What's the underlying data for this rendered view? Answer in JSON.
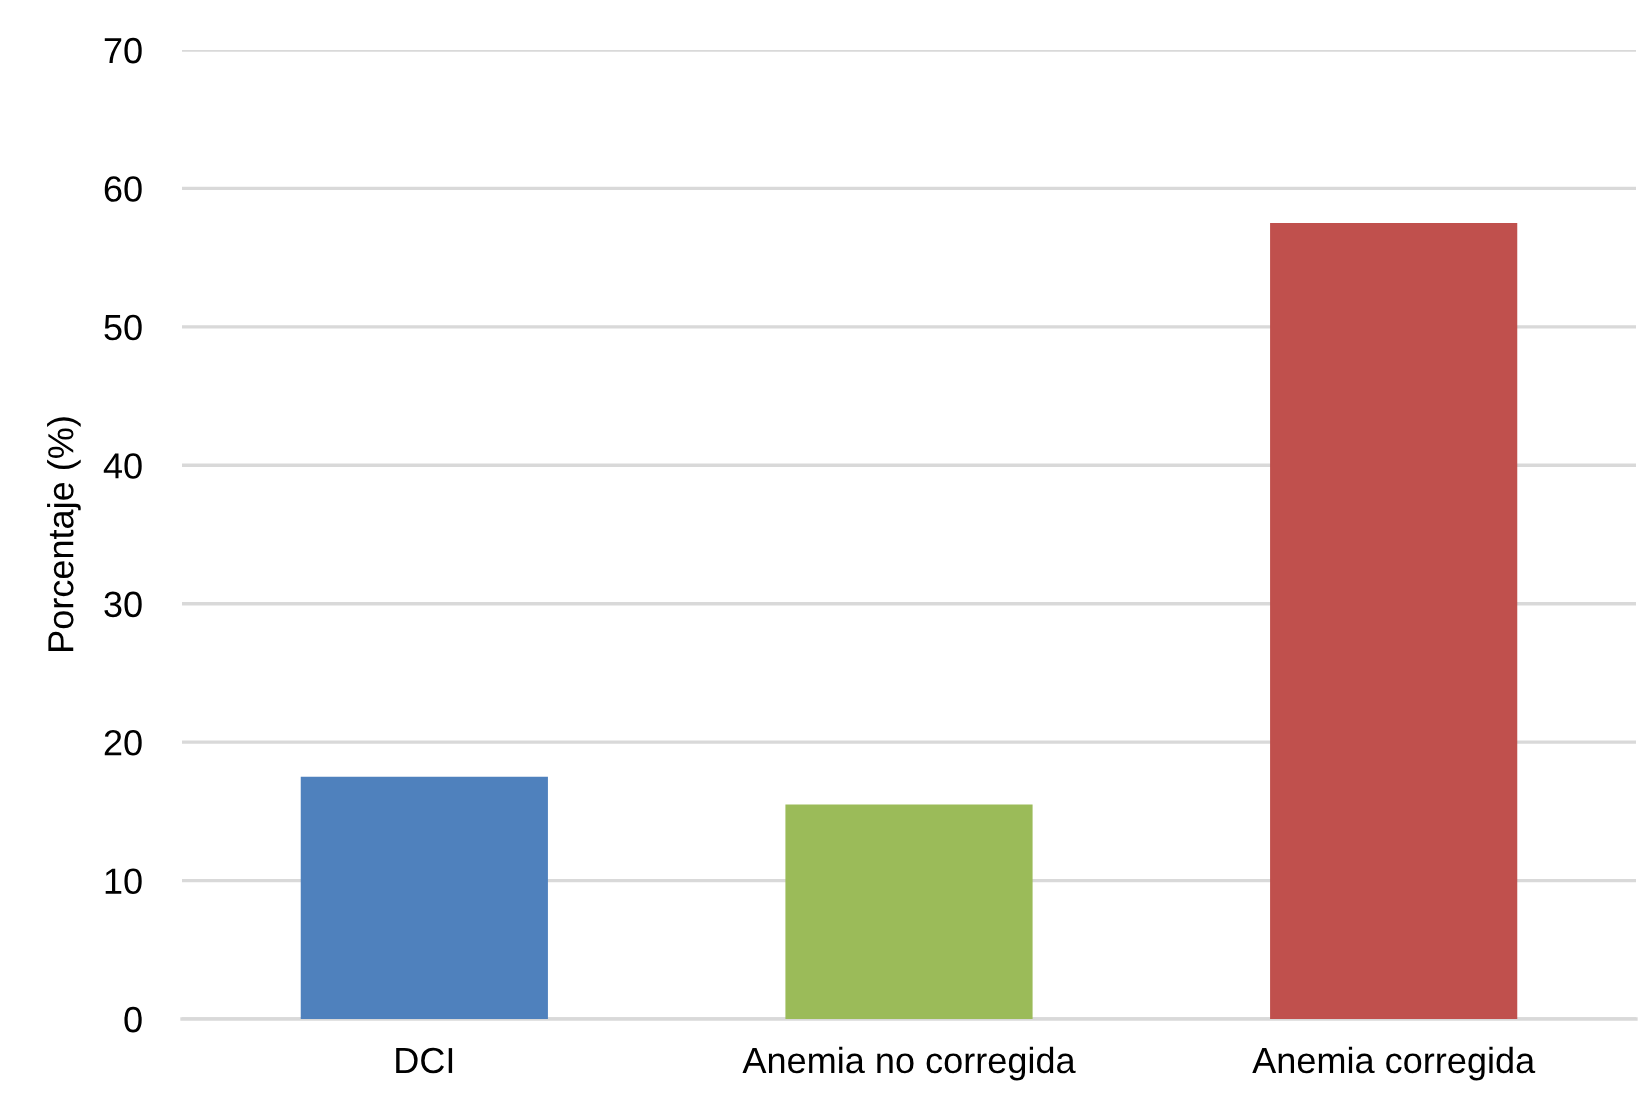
{
  "chart_data": {
    "type": "bar",
    "ylabel": "Porcentaje (%)",
    "categories": [
      "DCI",
      "Anemia no corregida",
      "Anemia corregida"
    ],
    "values": [
      17.5,
      15.5,
      57.5
    ],
    "colors": [
      "#4f81bd",
      "#9bbb59",
      "#c0504d"
    ],
    "ylim": [
      0,
      70
    ],
    "yticks": [
      0,
      10,
      20,
      30,
      40,
      50,
      60,
      70
    ],
    "grid": "y"
  }
}
